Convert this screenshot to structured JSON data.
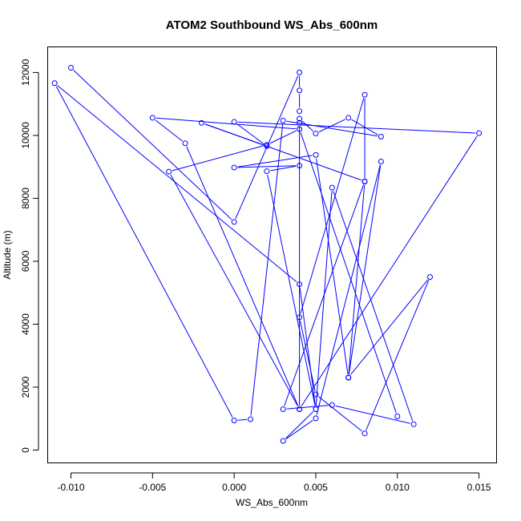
{
  "chart_data": {
    "type": "line",
    "title": "ATOM2 Southbound WS_Abs_600nm",
    "xlabel": "WS_Abs_600nm",
    "ylabel": "Altitude (m)",
    "xlim": [
      -0.0114,
      0.0161
    ],
    "ylim": [
      -420,
      12800
    ],
    "x_ticks": [
      -0.01,
      -0.005,
      0.0,
      0.005,
      0.01,
      0.015
    ],
    "x_tick_labels": [
      "-0.010",
      "-0.005",
      "0.000",
      "0.005",
      "0.010",
      "0.015"
    ],
    "y_ticks": [
      0,
      2000,
      4000,
      6000,
      8000,
      10000,
      12000
    ],
    "y_tick_labels": [
      "0",
      "2000",
      "4000",
      "6000",
      "8000",
      "10000",
      "12000"
    ],
    "grid": false,
    "series": [
      {
        "color": "#0000ff",
        "x": [
          -0.01,
          0.0,
          0.004,
          0.004,
          0.004,
          0.004,
          0.005,
          0.007,
          0.009,
          0.003,
          0.001,
          0.0,
          -0.011,
          0.004,
          0.005,
          0.002,
          0.004,
          0.0,
          0.005,
          0.007,
          0.008,
          0.008,
          0.004,
          0.005,
          0.008,
          0.012,
          0.007,
          0.009,
          0.005,
          0.003,
          0.005,
          0.006,
          0.011,
          0.006,
          0.003,
          0.008,
          -0.002,
          0.002,
          0.0,
          0.015,
          0.004,
          -0.003,
          -0.005,
          0.004,
          0.002,
          -0.004,
          0.004,
          0.004,
          0.004,
          0.01
        ],
        "y": [
          12150,
          7250,
          12000,
          11430,
          10770,
          10530,
          10060,
          10560,
          9960,
          10470,
          980,
          940,
          11660,
          5270,
          1300,
          8860,
          9040,
          8980,
          9380,
          2300,
          8530,
          11290,
          4220,
          1770,
          530,
          5500,
          2310,
          9170,
          1010,
          290,
          1300,
          8340,
          820,
          1430,
          1300,
          8540,
          10400,
          9660,
          10430,
          10070,
          1300,
          9750,
          10560,
          10200,
          9700,
          8850,
          1300,
          10400,
          10200,
          1070
        ]
      }
    ]
  }
}
